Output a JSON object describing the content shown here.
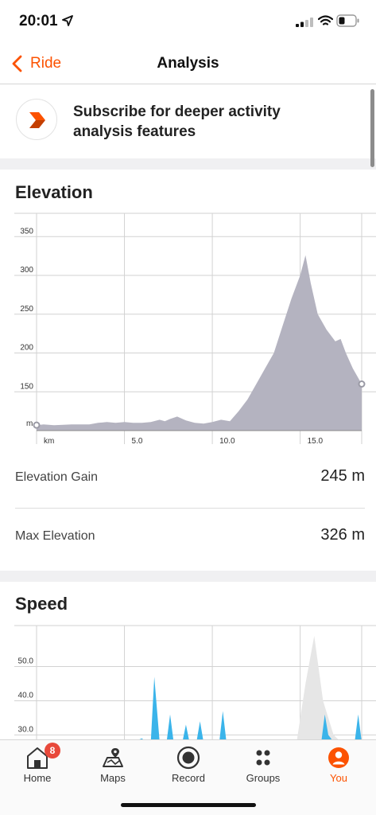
{
  "status_bar": {
    "time": "20:01"
  },
  "nav": {
    "back_label": "Ride",
    "title": "Analysis"
  },
  "promo": {
    "text": "Subscribe for deeper activity analysis features"
  },
  "elevation": {
    "title": "Elevation",
    "stats": [
      {
        "label": "Elevation Gain",
        "value": "245 m"
      },
      {
        "label": "Max Elevation",
        "value": "326 m"
      }
    ]
  },
  "speed": {
    "title": "Speed"
  },
  "tabs": [
    {
      "label": "Home",
      "icon": "home-icon",
      "badge": "8"
    },
    {
      "label": "Maps",
      "icon": "maps-icon"
    },
    {
      "label": "Record",
      "icon": "record-icon"
    },
    {
      "label": "Groups",
      "icon": "groups-icon"
    },
    {
      "label": "You",
      "icon": "you-icon",
      "active": true
    }
  ],
  "colors": {
    "accent": "#fc5200",
    "elevation_fill": "#b4b3c0",
    "speed_fill": "#3bb4ea",
    "badge": "#e8493b"
  },
  "chart_data": [
    {
      "type": "area",
      "x_unit_label": "km",
      "y_unit_label": "m",
      "x_ticks": [
        "5.0",
        "10.0",
        "15.0"
      ],
      "y_ticks": [
        "350",
        "300",
        "250",
        "200",
        "150"
      ],
      "ylim": [
        100,
        380
      ],
      "xlim": [
        0,
        18.5
      ],
      "grid": true,
      "x": [
        0,
        0.4,
        1,
        2,
        3,
        3.5,
        4,
        4.5,
        5,
        5.5,
        6,
        6.5,
        7,
        7.3,
        7.6,
        8,
        8.5,
        9,
        9.5,
        10,
        10.5,
        11,
        11.5,
        12,
        12.5,
        13,
        13.5,
        14,
        14.5,
        15,
        15.3,
        15.6,
        16,
        16.5,
        17,
        17.3,
        17.6,
        18,
        18.5
      ],
      "y": [
        107,
        108,
        107,
        108,
        108,
        110,
        111,
        110,
        111,
        110,
        110,
        111,
        114,
        112,
        115,
        118,
        113,
        110,
        109,
        111,
        114,
        112,
        125,
        140,
        160,
        180,
        200,
        235,
        270,
        300,
        326,
        290,
        250,
        230,
        215,
        218,
        200,
        180,
        160
      ]
    },
    {
      "type": "area",
      "y_ticks": [
        "50.0",
        "40.0",
        "30.0"
      ],
      "ylim": [
        28,
        62
      ],
      "xlim": [
        0,
        18.5
      ],
      "grid": true,
      "series": [
        {
          "x": [
            0,
            5.5,
            6,
            6.2,
            6.5,
            6.7,
            7,
            7.4,
            7.6,
            7.8,
            8.3,
            8.5,
            8.7,
            9.1,
            9.3,
            9.5,
            10.4,
            10.6,
            10.8,
            16.2,
            16.4,
            16.6,
            16.9,
            18.1,
            18.3,
            18.5
          ],
          "y": [
            28,
            28,
            29,
            28,
            28,
            47,
            28,
            28,
            36,
            28,
            28,
            33,
            28,
            28,
            34,
            28,
            28,
            37,
            28,
            28,
            36,
            30,
            28,
            28,
            36,
            28
          ]
        },
        {
          "x": [
            14.8,
            15.3,
            15.8,
            16.3,
            16.9,
            17.3
          ],
          "y": [
            28,
            45,
            59,
            40,
            30,
            28
          ]
        }
      ]
    }
  ]
}
